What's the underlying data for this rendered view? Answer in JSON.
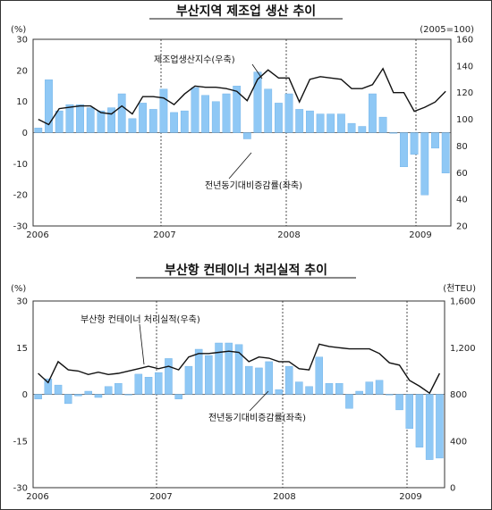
{
  "chart_data": [
    {
      "type": "bar",
      "title": "부산지역 제조업 생산 추이",
      "left_unit": "(%)",
      "right_unit": "(2005=100)",
      "left_ticks": [
        "30",
        "20",
        "10",
        "0",
        "-10",
        "-20",
        "-30"
      ],
      "right_ticks": [
        "160",
        "140",
        "120",
        "100",
        "80",
        "60",
        "40",
        "20"
      ],
      "year_labels": [
        "2006",
        "2007",
        "2008",
        "2009"
      ],
      "left_ylim": [
        -30,
        30
      ],
      "right_ylim": [
        20,
        160
      ],
      "series": [
        {
          "name": "전년동기대비증감률(좌축)",
          "axis": "left",
          "kind": "bar",
          "values": [
            1.5,
            17,
            7,
            9,
            9,
            8,
            7,
            8,
            12.5,
            4.5,
            9.5,
            7.5,
            14,
            6.5,
            7,
            14.5,
            12,
            10,
            12.5,
            15,
            -2,
            19.5,
            14,
            9.5,
            12.5,
            7.5,
            7,
            6,
            6,
            6,
            3,
            2,
            12.5,
            5,
            0,
            -11,
            -7,
            -20,
            -5,
            -13
          ]
        },
        {
          "name": "제조업생산지수(우축)",
          "axis": "right",
          "kind": "line",
          "values": [
            100,
            96,
            108,
            109,
            110,
            110,
            105,
            104,
            110,
            104,
            117,
            117,
            116,
            111,
            119,
            125,
            124,
            124,
            123,
            121,
            114,
            130,
            137,
            131,
            131,
            113,
            130,
            132,
            131,
            130,
            123,
            123,
            126,
            138,
            120,
            120,
            106,
            109,
            113,
            121
          ]
        }
      ]
    },
    {
      "type": "bar",
      "title": "부산항 컨테이너 처리실적 추이",
      "left_unit": "(%)",
      "right_unit": "(천TEU)",
      "left_ticks": [
        "30",
        "15",
        "0",
        "-15",
        "-30"
      ],
      "right_ticks": [
        "1,600",
        "1,200",
        "800",
        "400",
        "0"
      ],
      "year_labels": [
        "2006",
        "2007",
        "2008",
        "2009"
      ],
      "left_ylim": [
        -30,
        30
      ],
      "right_ylim": [
        0,
        1600
      ],
      "series": [
        {
          "name": "전년동기대비증감률(좌축)",
          "axis": "left",
          "kind": "bar",
          "values": [
            -1.5,
            5,
            3,
            -3,
            -0.5,
            1,
            -1,
            2.5,
            3.5,
            0,
            6.5,
            5.5,
            7,
            11.5,
            -1.5,
            9,
            14.5,
            12.5,
            16.5,
            16.5,
            16,
            9,
            8.5,
            10.5,
            1.5,
            9,
            4,
            2.5,
            12,
            3.5,
            3.5,
            -4.5,
            1,
            4,
            4.5,
            0,
            -5,
            -11,
            -17,
            -21,
            -20.5
          ]
        },
        {
          "name": "부산항 컨테이너 처리실적(우축)",
          "axis": "right",
          "kind": "line",
          "values": [
            980,
            900,
            1080,
            1010,
            1000,
            970,
            990,
            970,
            980,
            1000,
            1020,
            1040,
            1020,
            1040,
            1010,
            1120,
            1150,
            1150,
            1160,
            1170,
            1160,
            1080,
            1120,
            1110,
            1080,
            1080,
            1020,
            1010,
            1230,
            1210,
            1200,
            1190,
            1190,
            1190,
            1150,
            1070,
            1050,
            920,
            870,
            810,
            980
          ]
        }
      ]
    }
  ]
}
